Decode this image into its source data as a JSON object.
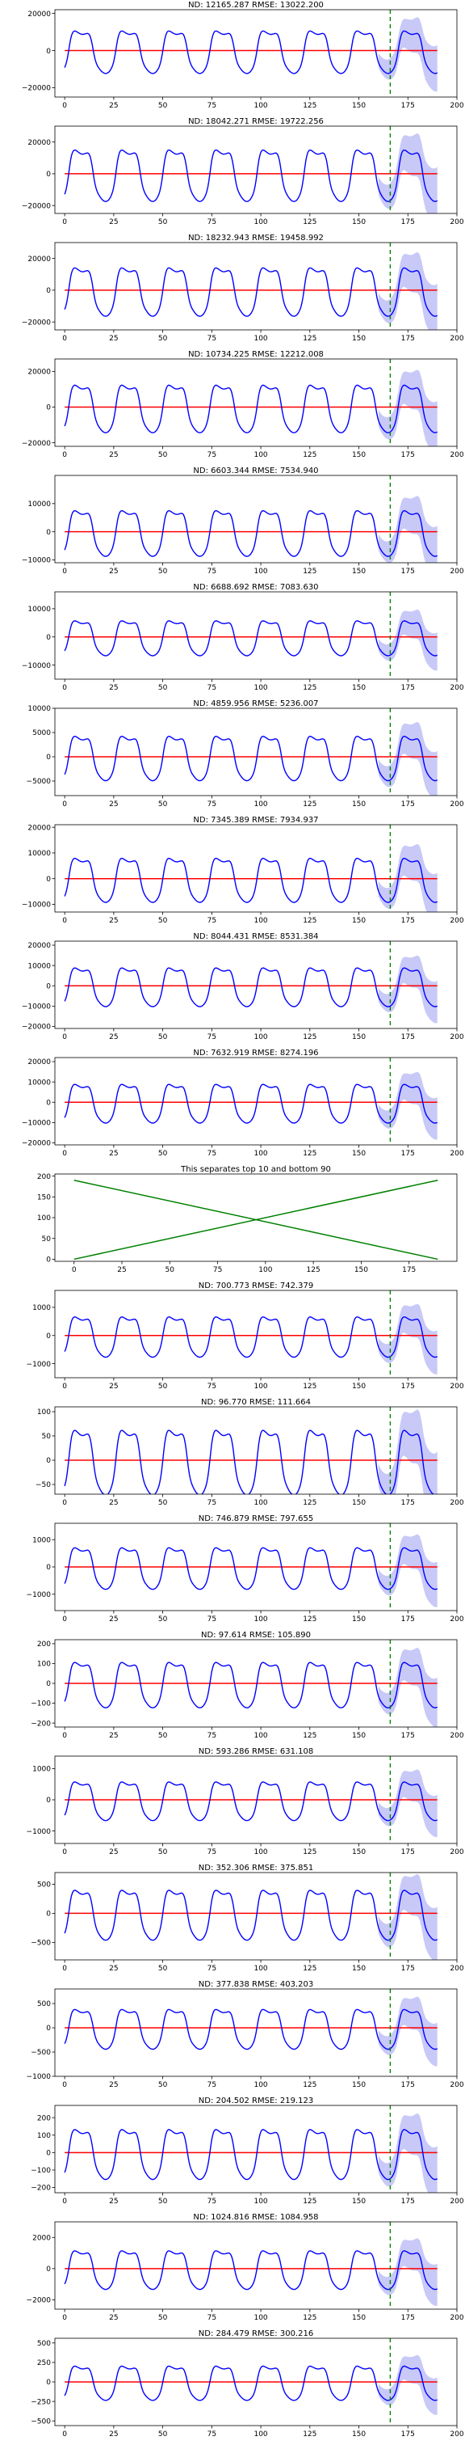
{
  "colors": {
    "actual": "#0000ff",
    "baseline": "#ff0000",
    "forecast_band": "#9a9cf0",
    "divider_line": "#008000",
    "separator_lines": "#008000",
    "axes": "#000000"
  },
  "chart_data": [
    {
      "type": "line",
      "title": "ND:  12165.287 RMSE:  13022.200",
      "amp": 12000,
      "xlim": [
        -5,
        200
      ],
      "ylim": [
        -25000,
        22000
      ],
      "yticks": [
        -20000,
        0,
        20000
      ],
      "yticklabels": [
        "−20000",
        "0",
        "20000"
      ],
      "xticks": [
        0,
        25,
        50,
        75,
        100,
        125,
        150,
        175,
        200
      ],
      "forecast_start": 166,
      "x_end": 190,
      "baseline_value": 0
    },
    {
      "type": "line",
      "title": "ND:  18042.271 RMSE:  19722.256",
      "amp": 17000,
      "xlim": [
        -5,
        200
      ],
      "ylim": [
        -25000,
        30000
      ],
      "yticks": [
        -20000,
        0,
        20000
      ],
      "yticklabels": [
        "−20000",
        "0",
        "20000"
      ],
      "xticks": [
        0,
        25,
        50,
        75,
        100,
        125,
        150,
        175,
        200
      ],
      "forecast_start": 166,
      "x_end": 190,
      "baseline_value": 0
    },
    {
      "type": "line",
      "title": "ND:  18232.943 RMSE:  19458.992",
      "amp": 16000,
      "xlim": [
        -5,
        200
      ],
      "ylim": [
        -25000,
        30000
      ],
      "yticks": [
        -20000,
        0,
        20000
      ],
      "yticklabels": [
        "−20000",
        "0",
        "20000"
      ],
      "xticks": [
        0,
        25,
        50,
        75,
        100,
        125,
        150,
        175,
        200
      ],
      "forecast_start": 166,
      "x_end": 190,
      "baseline_value": 0
    },
    {
      "type": "line",
      "title": "ND:  10734.225 RMSE:  12212.008",
      "amp": 14000,
      "xlim": [
        -5,
        200
      ],
      "ylim": [
        -22000,
        27000
      ],
      "yticks": [
        -20000,
        0,
        20000
      ],
      "yticklabels": [
        "−20000",
        "0",
        "20000"
      ],
      "xticks": [
        0,
        25,
        50,
        75,
        100,
        125,
        150,
        175,
        200
      ],
      "forecast_start": 166,
      "x_end": 190,
      "baseline_value": 0
    },
    {
      "type": "line",
      "title": "ND:  6603.344 RMSE:  7534.940",
      "amp": 8500,
      "xlim": [
        -5,
        200
      ],
      "ylim": [
        -11000,
        20000
      ],
      "yticks": [
        -10000,
        0,
        10000
      ],
      "yticklabels": [
        "−10000",
        "0",
        "10000"
      ],
      "xticks": [
        0,
        25,
        50,
        75,
        100,
        125,
        150,
        175,
        200
      ],
      "forecast_start": 166,
      "x_end": 190,
      "baseline_value": 0
    },
    {
      "type": "line",
      "title": "ND:  6688.692 RMSE:  7083.630",
      "amp": 6500,
      "xlim": [
        -5,
        200
      ],
      "ylim": [
        -15000,
        16000
      ],
      "yticks": [
        -10000,
        0,
        10000
      ],
      "yticklabels": [
        "−10000",
        "0",
        "10000"
      ],
      "xticks": [
        0,
        25,
        50,
        75,
        100,
        125,
        150,
        175,
        200
      ],
      "forecast_start": 166,
      "x_end": 190,
      "baseline_value": 0
    },
    {
      "type": "line",
      "title": "ND:  4859.956 RMSE:  5236.007",
      "amp": 4800,
      "xlim": [
        -5,
        200
      ],
      "ylim": [
        -8000,
        10000
      ],
      "yticks": [
        -5000,
        0,
        5000,
        10000
      ],
      "yticklabels": [
        "−5000",
        "0",
        "5000",
        "10000"
      ],
      "xticks": [
        0,
        25,
        50,
        75,
        100,
        125,
        150,
        175,
        200
      ],
      "forecast_start": 166,
      "x_end": 190,
      "baseline_value": 0
    },
    {
      "type": "line",
      "title": "ND:  7345.389 RMSE:  7934.937",
      "amp": 9000,
      "xlim": [
        -5,
        200
      ],
      "ylim": [
        -13000,
        21000
      ],
      "yticks": [
        -10000,
        0,
        10000,
        20000
      ],
      "yticklabels": [
        "−10000",
        "0",
        "10000",
        "20000"
      ],
      "xticks": [
        0,
        25,
        50,
        75,
        100,
        125,
        150,
        175,
        200
      ],
      "forecast_start": 166,
      "x_end": 190,
      "baseline_value": 0
    },
    {
      "type": "line",
      "title": "ND:  8044.431 RMSE:  8531.384",
      "amp": 10000,
      "xlim": [
        -5,
        200
      ],
      "ylim": [
        -21000,
        22000
      ],
      "yticks": [
        -20000,
        -10000,
        0,
        10000,
        20000
      ],
      "yticklabels": [
        "−20000",
        "−10000",
        "0",
        "10000",
        "20000"
      ],
      "xticks": [
        0,
        25,
        50,
        75,
        100,
        125,
        150,
        175,
        200
      ],
      "forecast_start": 166,
      "x_end": 190,
      "baseline_value": 0
    },
    {
      "type": "line",
      "title": "ND:  7632.919 RMSE:  8274.196",
      "amp": 10000,
      "xlim": [
        -5,
        200
      ],
      "ylim": [
        -21000,
        22000
      ],
      "yticks": [
        -20000,
        -10000,
        0,
        10000,
        20000
      ],
      "yticklabels": [
        "−20000",
        "−10000",
        "0",
        "10000",
        "20000"
      ],
      "xticks": [
        0,
        25,
        50,
        75,
        100,
        125,
        150,
        175,
        200
      ],
      "forecast_start": 166,
      "x_end": 190,
      "baseline_value": 0
    },
    {
      "type": "separator",
      "title": "This separates top 10 and bottom 90",
      "xlim": [
        -10,
        200
      ],
      "ylim": [
        -5,
        205
      ],
      "yticks": [
        0,
        50,
        100,
        150,
        200
      ],
      "yticklabels": [
        "0",
        "50",
        "100",
        "150",
        "200"
      ],
      "xticks": [
        0,
        25,
        50,
        75,
        100,
        125,
        150,
        175
      ],
      "lines": [
        [
          [
            0,
            0
          ],
          [
            190,
            190
          ]
        ],
        [
          [
            0,
            190
          ],
          [
            190,
            0
          ]
        ]
      ]
    },
    {
      "type": "line",
      "title": "ND:  700.773 RMSE:  742.379",
      "amp": 750,
      "xlim": [
        -5,
        200
      ],
      "ylim": [
        -1500,
        1600
      ],
      "yticks": [
        -1000,
        0,
        1000
      ],
      "yticklabels": [
        "−1000",
        "0",
        "1000"
      ],
      "xticks": [
        0,
        25,
        50,
        75,
        100,
        125,
        150,
        175,
        200
      ],
      "forecast_start": 166,
      "x_end": 190,
      "baseline_value": 0
    },
    {
      "type": "line",
      "title": "ND:  96.770 RMSE:  111.664",
      "amp": 70,
      "xlim": [
        -5,
        200
      ],
      "ylim": [
        -70,
        110
      ],
      "yticks": [
        -50,
        0,
        50,
        100
      ],
      "yticklabels": [
        "−50",
        "0",
        "50",
        "100"
      ],
      "xticks": [
        0,
        25,
        50,
        75,
        100,
        125,
        150,
        175,
        200
      ],
      "forecast_start": 166,
      "x_end": 190,
      "baseline_value": 0
    },
    {
      "type": "line",
      "title": "ND:  746.879 RMSE:  797.655",
      "amp": 800,
      "xlim": [
        -5,
        200
      ],
      "ylim": [
        -1600,
        1600
      ],
      "yticks": [
        -1000,
        0,
        1000
      ],
      "yticklabels": [
        "−1000",
        "0",
        "1000"
      ],
      "xticks": [
        0,
        25,
        50,
        75,
        100,
        125,
        150,
        175,
        200
      ],
      "forecast_start": 166,
      "x_end": 190,
      "baseline_value": 0
    },
    {
      "type": "line",
      "title": "ND:  97.614 RMSE:  105.890",
      "amp": 120,
      "xlim": [
        -5,
        200
      ],
      "ylim": [
        -220,
        220
      ],
      "yticks": [
        -200,
        -100,
        0,
        100,
        200
      ],
      "yticklabels": [
        "−200",
        "−100",
        "0",
        "100",
        "200"
      ],
      "xticks": [
        0,
        25,
        50,
        75,
        100,
        125,
        150,
        175,
        200
      ],
      "forecast_start": 166,
      "x_end": 190,
      "baseline_value": 0
    },
    {
      "type": "line",
      "title": "ND:  593.286 RMSE:  631.108",
      "amp": 650,
      "xlim": [
        -5,
        200
      ],
      "ylim": [
        -1400,
        1400
      ],
      "yticks": [
        -1000,
        0,
        1000
      ],
      "yticklabels": [
        "−1000",
        "0",
        "1000"
      ],
      "xticks": [
        0,
        25,
        50,
        75,
        100,
        125,
        150,
        175,
        200
      ],
      "forecast_start": 166,
      "x_end": 190,
      "baseline_value": 0
    },
    {
      "type": "line",
      "title": "ND:  352.306 RMSE:  375.851",
      "amp": 450,
      "xlim": [
        -5,
        200
      ],
      "ylim": [
        -800,
        700
      ],
      "yticks": [
        -500,
        0,
        500
      ],
      "yticklabels": [
        "−500",
        "0",
        "500"
      ],
      "xticks": [
        0,
        25,
        50,
        75,
        100,
        125,
        150,
        175,
        200
      ],
      "forecast_start": 166,
      "x_end": 190,
      "baseline_value": 0
    },
    {
      "type": "line",
      "title": "ND:  377.838 RMSE:  403.203",
      "amp": 430,
      "xlim": [
        -5,
        200
      ],
      "ylim": [
        -1000,
        800
      ],
      "yticks": [
        -1000,
        -500,
        0,
        500
      ],
      "yticklabels": [
        "−1000",
        "−500",
        "0",
        "500"
      ],
      "xticks": [
        0,
        25,
        50,
        75,
        100,
        125,
        150,
        175,
        200
      ],
      "forecast_start": 166,
      "x_end": 190,
      "baseline_value": 0
    },
    {
      "type": "line",
      "title": "ND:  204.502 RMSE:  219.123",
      "amp": 150,
      "xlim": [
        -5,
        200
      ],
      "ylim": [
        -230,
        270
      ],
      "yticks": [
        -200,
        -100,
        0,
        100,
        200
      ],
      "yticklabels": [
        "−200",
        "−100",
        "0",
        "100",
        "200"
      ],
      "xticks": [
        0,
        25,
        50,
        75,
        100,
        125,
        150,
        175,
        200
      ],
      "forecast_start": 166,
      "x_end": 190,
      "baseline_value": 0
    },
    {
      "type": "line",
      "title": "ND:  1024.816 RMSE:  1084.958",
      "amp": 1300,
      "xlim": [
        -5,
        200
      ],
      "ylim": [
        -2600,
        3000
      ],
      "yticks": [
        -2000,
        0,
        2000
      ],
      "yticklabels": [
        "−2000",
        "0",
        "2000"
      ],
      "xticks": [
        0,
        25,
        50,
        75,
        100,
        125,
        150,
        175,
        200
      ],
      "forecast_start": 166,
      "x_end": 190,
      "baseline_value": 0
    },
    {
      "type": "line",
      "title": "ND:  284.479 RMSE:  300.216",
      "amp": 230,
      "xlim": [
        -5,
        200
      ],
      "ylim": [
        -560,
        560
      ],
      "yticks": [
        -500,
        -250,
        0,
        250,
        500
      ],
      "yticklabels": [
        "−500",
        "−250",
        "0",
        "250",
        "500"
      ],
      "xticks": [
        0,
        25,
        50,
        75,
        100,
        125,
        150,
        175,
        200
      ],
      "forecast_start": 166,
      "x_end": 190,
      "baseline_value": 0
    }
  ]
}
